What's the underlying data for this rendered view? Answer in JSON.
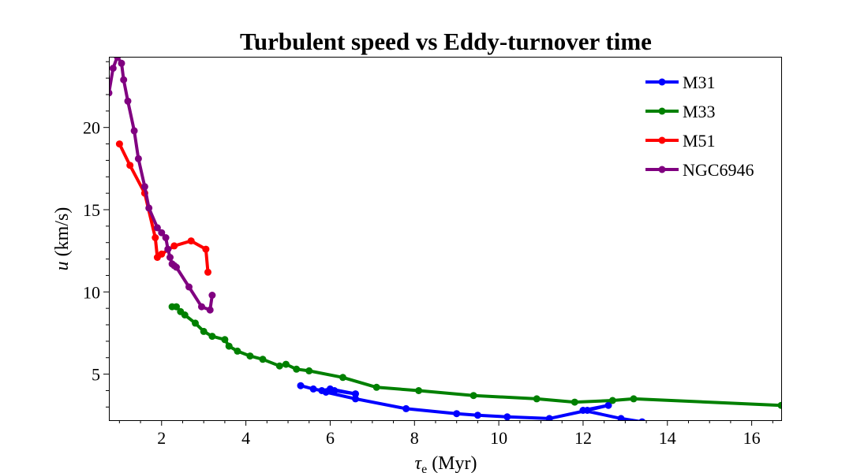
{
  "chart_data": {
    "type": "line",
    "title": "Turbulent speed vs Eddy-turnover time",
    "xlabel_symbol": "τ",
    "xlabel_subscript": "e",
    "xlabel_rest": " (Myr)",
    "ylabel_symbol": "u",
    "ylabel_rest": " (km/s)",
    "xlim": [
      0.75,
      16.7
    ],
    "ylim": [
      2.2,
      24.3
    ],
    "x_ticks": [
      2,
      4,
      6,
      8,
      10,
      12,
      14,
      16
    ],
    "y_ticks": [
      5,
      10,
      15,
      20
    ],
    "x_minor_step": 0.5,
    "y_minor_step": 1,
    "grid": false,
    "legend_position": "top-right",
    "series": [
      {
        "name": "M31",
        "color": "#0000ff",
        "x": [
          5.3,
          5.6,
          5.8,
          6.0,
          6.6,
          6.1,
          5.9,
          6.6,
          7.8,
          9.0,
          9.5,
          10.2,
          11.2,
          12.1,
          12.6,
          12.0,
          12.9,
          13.4
        ],
        "y": [
          4.3,
          4.1,
          4.0,
          4.1,
          3.8,
          4.0,
          3.9,
          3.5,
          2.9,
          2.6,
          2.5,
          2.4,
          2.3,
          2.8,
          3.1,
          2.8,
          2.3,
          2.1
        ]
      },
      {
        "name": "M33",
        "color": "#008000",
        "x": [
          2.25,
          2.35,
          2.45,
          2.55,
          2.8,
          3.0,
          3.2,
          3.5,
          3.6,
          3.8,
          4.1,
          4.4,
          4.8,
          4.95,
          5.2,
          5.5,
          6.3,
          7.1,
          8.1,
          9.4,
          10.9,
          11.8,
          12.7,
          13.2,
          16.7
        ],
        "y": [
          9.1,
          9.1,
          8.8,
          8.6,
          8.1,
          7.6,
          7.3,
          7.1,
          6.7,
          6.4,
          6.1,
          5.9,
          5.5,
          5.6,
          5.3,
          5.2,
          4.8,
          4.2,
          4.0,
          3.7,
          3.5,
          3.3,
          3.4,
          3.5,
          3.1
        ]
      },
      {
        "name": "M51",
        "color": "#ff0000",
        "x": [
          1.0,
          1.25,
          1.6,
          1.85,
          1.9,
          2.0,
          2.3,
          2.7,
          3.05,
          3.1
        ],
        "y": [
          19.0,
          17.7,
          16.0,
          13.3,
          12.1,
          12.3,
          12.8,
          13.1,
          12.6,
          11.2
        ]
      },
      {
        "name": "NGC6946",
        "color": "#800080",
        "x": [
          0.75,
          0.85,
          0.95,
          1.05,
          1.1,
          1.2,
          1.35,
          1.45,
          1.6,
          1.7,
          1.9,
          2.0,
          2.1,
          2.15,
          2.2,
          2.25,
          2.3,
          2.35,
          2.65,
          2.95,
          3.15,
          3.2
        ],
        "y": [
          22.1,
          23.6,
          24.3,
          23.9,
          22.9,
          21.6,
          19.8,
          18.1,
          16.4,
          15.1,
          13.9,
          13.6,
          13.3,
          12.6,
          12.1,
          11.7,
          11.6,
          11.5,
          10.3,
          9.1,
          8.9,
          9.8
        ]
      }
    ]
  }
}
